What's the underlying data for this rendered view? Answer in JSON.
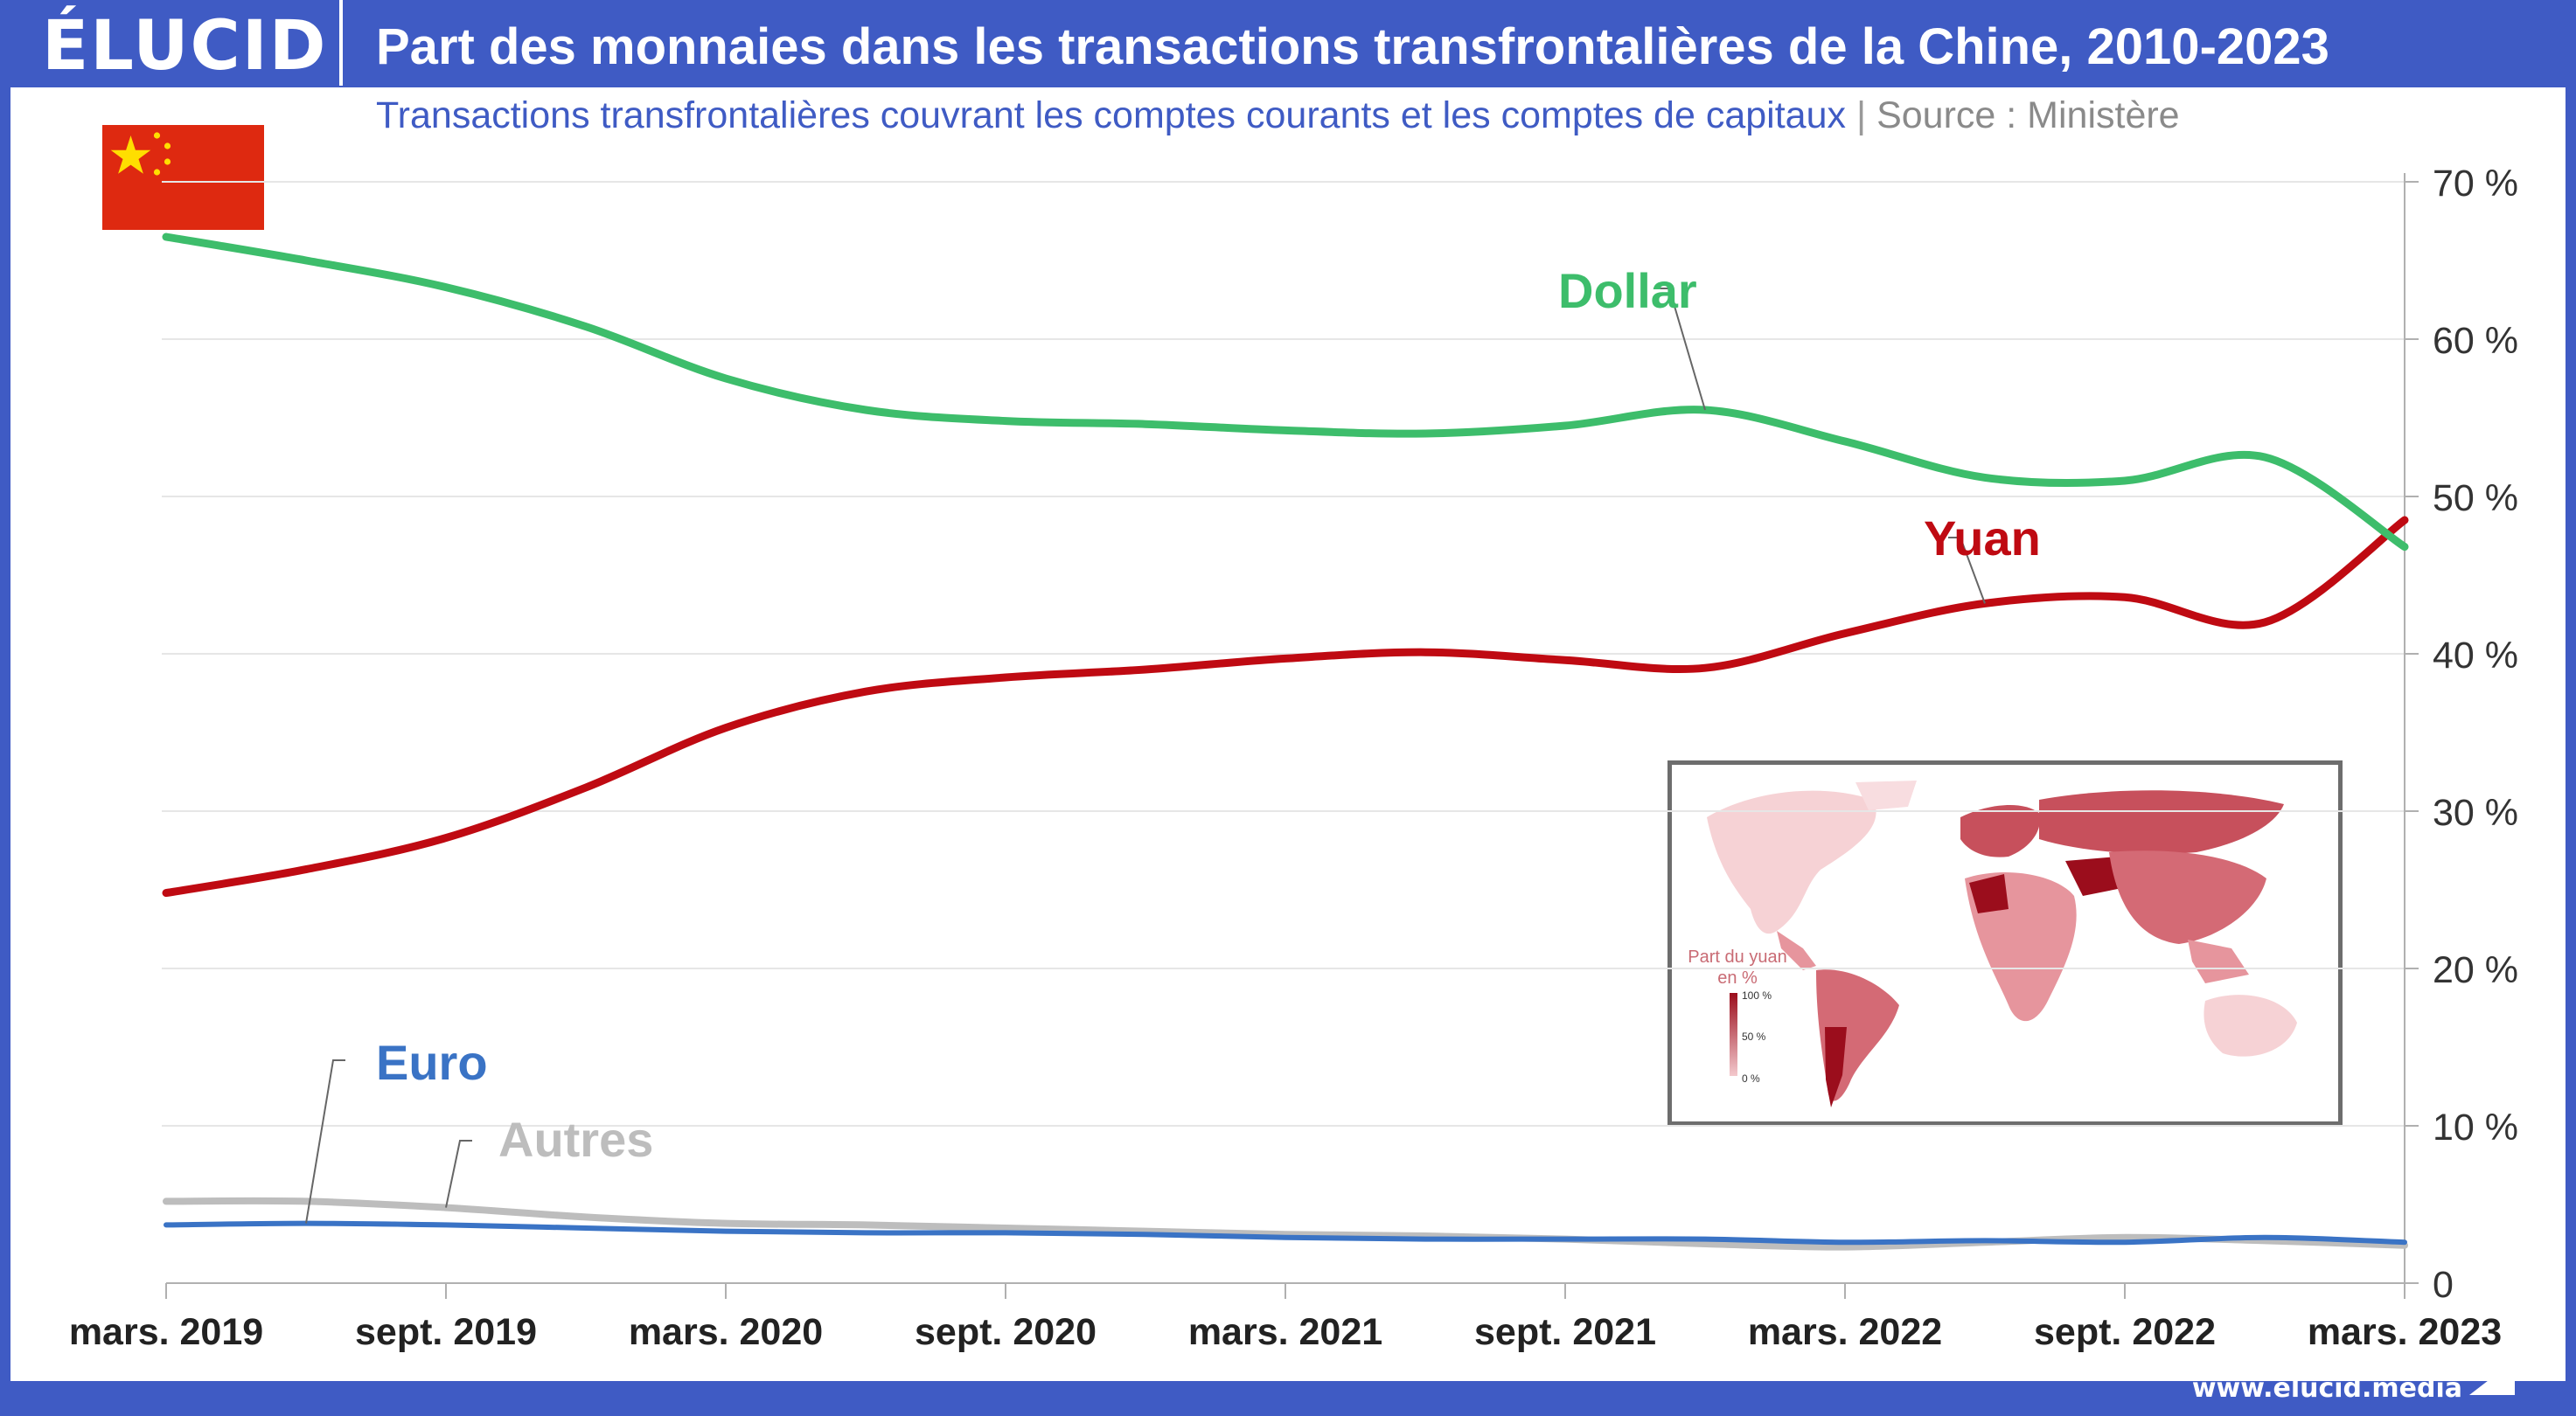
{
  "brand": {
    "logo": "ÉLUCID",
    "website": "www.elucid.media"
  },
  "title": "Part des monnaies dans les transactions transfrontalières de la Chine, 2010-2023",
  "subtitle": "Transactions transfrontalières couvrant les comptes courants et les comptes de capitaux",
  "source_separator": "|",
  "source": "Source : Ministère",
  "flag": {
    "icon": "china-flag-icon",
    "color": "#de2910",
    "star_color": "#ffde00"
  },
  "inset_map": {
    "icon": "world-map-icon",
    "legend_title": "Part du yuan en %",
    "legend_ticks": [
      "100 %",
      "50 %",
      "0 %"
    ],
    "colors": {
      "dark": "#9b0d1c",
      "mid": "#c7505c",
      "light": "#f3c9cd"
    }
  },
  "chart_data": {
    "type": "line",
    "x_tick_labels": [
      "mars. 2019",
      "sept. 2019",
      "mars. 2020",
      "sept. 2020",
      "mars. 2021",
      "sept. 2021",
      "mars. 2022",
      "sept. 2022",
      "mars. 2023"
    ],
    "y_tick_labels": [
      "0",
      "10 %",
      "20 %",
      "30 %",
      "40 %",
      "50 %",
      "60 %",
      "70 %"
    ],
    "y_ticks": [
      0,
      10,
      20,
      30,
      40,
      50,
      60,
      70
    ],
    "ylim": [
      0,
      70
    ],
    "x_positions": [
      0,
      0.5,
      1,
      1.5,
      2,
      2.5,
      3,
      3.5,
      4,
      4.5,
      5,
      5.5,
      6,
      6.5,
      7,
      7.5,
      8
    ],
    "grid": true,
    "series": [
      {
        "name": "Dollar",
        "color": "#3dbd6b",
        "values": [
          66.5,
          65,
          63.3,
          60.8,
          57.5,
          55.5,
          54.8,
          54.6,
          54.2,
          54,
          54.5,
          55.5,
          53.5,
          51.2,
          51,
          52.5,
          46.8
        ]
      },
      {
        "name": "Yuan",
        "color": "#bf0a12",
        "values": [
          24.8,
          26.3,
          28.3,
          31.5,
          35.3,
          37.6,
          38.5,
          39,
          39.7,
          40.1,
          39.6,
          39.1,
          41.3,
          43.2,
          43.6,
          42,
          48.5
        ]
      },
      {
        "name": "Euro",
        "color": "#3a73c5",
        "values": [
          3.7,
          3.8,
          3.7,
          3.5,
          3.3,
          3.2,
          3.2,
          3.1,
          2.9,
          2.8,
          2.8,
          2.8,
          2.6,
          2.7,
          2.6,
          2.9,
          2.6
        ]
      },
      {
        "name": "Autres",
        "color": "#bdbdbd",
        "values": [
          5.2,
          5.2,
          4.8,
          4.2,
          3.8,
          3.7,
          3.5,
          3.3,
          3.1,
          3,
          2.8,
          2.5,
          2.3,
          2.6,
          2.9,
          2.7,
          2.4
        ]
      }
    ],
    "series_labels": [
      {
        "name": "Dollar",
        "text": "Dollar",
        "anchor_x": 5.5
      },
      {
        "name": "Yuan",
        "text": "Yuan",
        "anchor_x": 6.5
      },
      {
        "name": "Euro",
        "text": "Euro",
        "anchor_x": 0.5
      },
      {
        "name": "Autres",
        "text": "Autres",
        "anchor_x": 1
      }
    ]
  }
}
